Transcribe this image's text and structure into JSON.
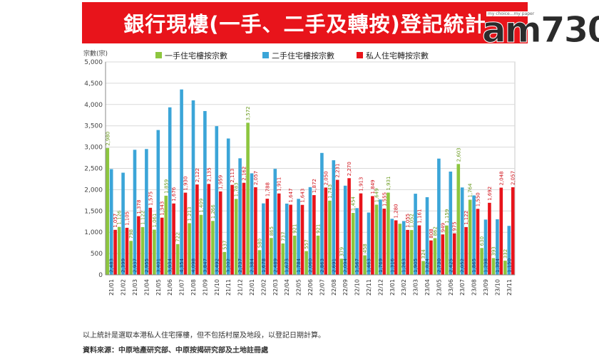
{
  "title": "銀行現樓(一手、二手及轉按)登記統計",
  "logo": {
    "mark": "am730",
    "tag": "my choice...my paper"
  },
  "footer": {
    "note": "以上統計是選取本港私人住宅揮樓，但不包括村屋及地段，以登記日期計算。",
    "source": "資料來源：中原地產研究部、中原按揭研究部及土地註冊處"
  },
  "colors": {
    "first_hand": "#8dc63f",
    "second_hand": "#3ba5d8",
    "remortgage": "#e8141b",
    "banner": "#e8141b"
  },
  "chart_data": {
    "type": "bar",
    "ylabel": "宗數(宗)",
    "ylim": [
      0,
      5000
    ],
    "yticks": [
      "0",
      "500",
      "1,000",
      "1,500",
      "2,000",
      "2,500",
      "3,000",
      "3,500",
      "4,000",
      "4,500",
      "5,000"
    ],
    "grid": true,
    "legend_position": "top",
    "categories": [
      "21/01",
      "21/02",
      "21/03",
      "21/04",
      "21/05",
      "21/06",
      "21/07",
      "21/08",
      "21/09",
      "21/10",
      "21/11",
      "21/12",
      "22/01",
      "22/02",
      "22/03",
      "22/04",
      "22/05",
      "22/06",
      "22/07",
      "22/08",
      "22/09",
      "22/10",
      "22/11",
      "22/12",
      "23/01",
      "23/02",
      "23/03",
      "23/04",
      "23/05",
      "23/06",
      "23/07",
      "23/08",
      "23/09",
      "23/10",
      "23/11"
    ],
    "series": [
      {
        "name": "一手住宅樓按宗數",
        "values": [
          2980,
          1126,
          798,
          1122,
          1061,
          1859,
          722,
          1213,
          1409,
          1266,
          537,
          1783,
          3572,
          580,
          865,
          737,
          921,
          557,
          921,
          1743,
          379,
          1454,
          458,
          1649,
          1931,
          1200,
          1052,
          324,
          862,
          1159,
          2603,
          1764,
          630,
          393,
          332
        ],
        "labels": [
          "2,980",
          "1,126",
          "798",
          "1,122",
          "1,061",
          "1,859",
          "722",
          "1,213",
          "1,409",
          "1,266",
          "537",
          "1,783",
          "3,572",
          "580",
          "865",
          "737",
          "921",
          "557",
          "921",
          "1,743",
          "379",
          "1,454",
          "458",
          "1,649",
          "1,931",
          "",
          "1,052",
          "324",
          "862",
          "1,159",
          "2,603",
          "1,764",
          "630",
          "393",
          "332"
        ]
      },
      {
        "name": "二手住宅樓按宗數",
        "values": [
          2483,
          2399,
          2937,
          2955,
          3401,
          3934,
          4354,
          4098,
          3847,
          3492,
          3202,
          2737,
          2384,
          1678,
          2489,
          1673,
          1784,
          2060,
          2863,
          2691,
          2094,
          1567,
          1463,
          1769,
          1316,
          1263,
          1905,
          1824,
          2730,
          2425,
          2052,
          1865,
          1298,
          1304,
          1150
        ],
        "labels": [
          "2,483",
          "2,399",
          "2,937",
          "2,955",
          "3,401",
          "3,934",
          "4,354",
          "4,098",
          "3,847",
          "3,492",
          "3,202",
          "2,737",
          "2,384",
          "1,678",
          "2,489",
          "1,673",
          "1,784",
          "2,060",
          "2,863",
          "2,691",
          "2,094",
          "1,567",
          "1,463",
          "1,769",
          "1,316",
          "1,263",
          "1,905",
          "1,824",
          "2,730",
          "2,425",
          "2,052",
          "1,865",
          "1,298",
          "1,304",
          "1,150"
        ]
      },
      {
        "name": "私人住宅轉按宗數",
        "values": [
          1057,
          1105,
          1378,
          1575,
          1343,
          1676,
          1930,
          2122,
          2135,
          1959,
          2113,
          2162,
          2057,
          1788,
          1911,
          1647,
          1643,
          1872,
          2050,
          2231,
          2270,
          1913,
          1849,
          1555,
          1280,
          1055,
          1161,
          808,
          949,
          975,
          1122,
          1550,
          1692,
          2048,
          2057
        ],
        "labels": [
          "1,057",
          "1,105",
          "1,378",
          "1,575",
          "1,343",
          "1,676",
          "1,930",
          "2,122",
          "2,135",
          "1,959",
          "2,113",
          "2,162",
          "2,057",
          "1,788",
          "1,911",
          "1,647",
          "1,643",
          "1,872",
          "2,050",
          "2,231",
          "2,270",
          "1,913",
          "1,849",
          "1,555",
          "1,280",
          "1,055",
          "1,161",
          "808",
          "949",
          "975",
          "1,122",
          "1,550",
          "1,692",
          "2,048",
          "2,057"
        ]
      }
    ]
  }
}
